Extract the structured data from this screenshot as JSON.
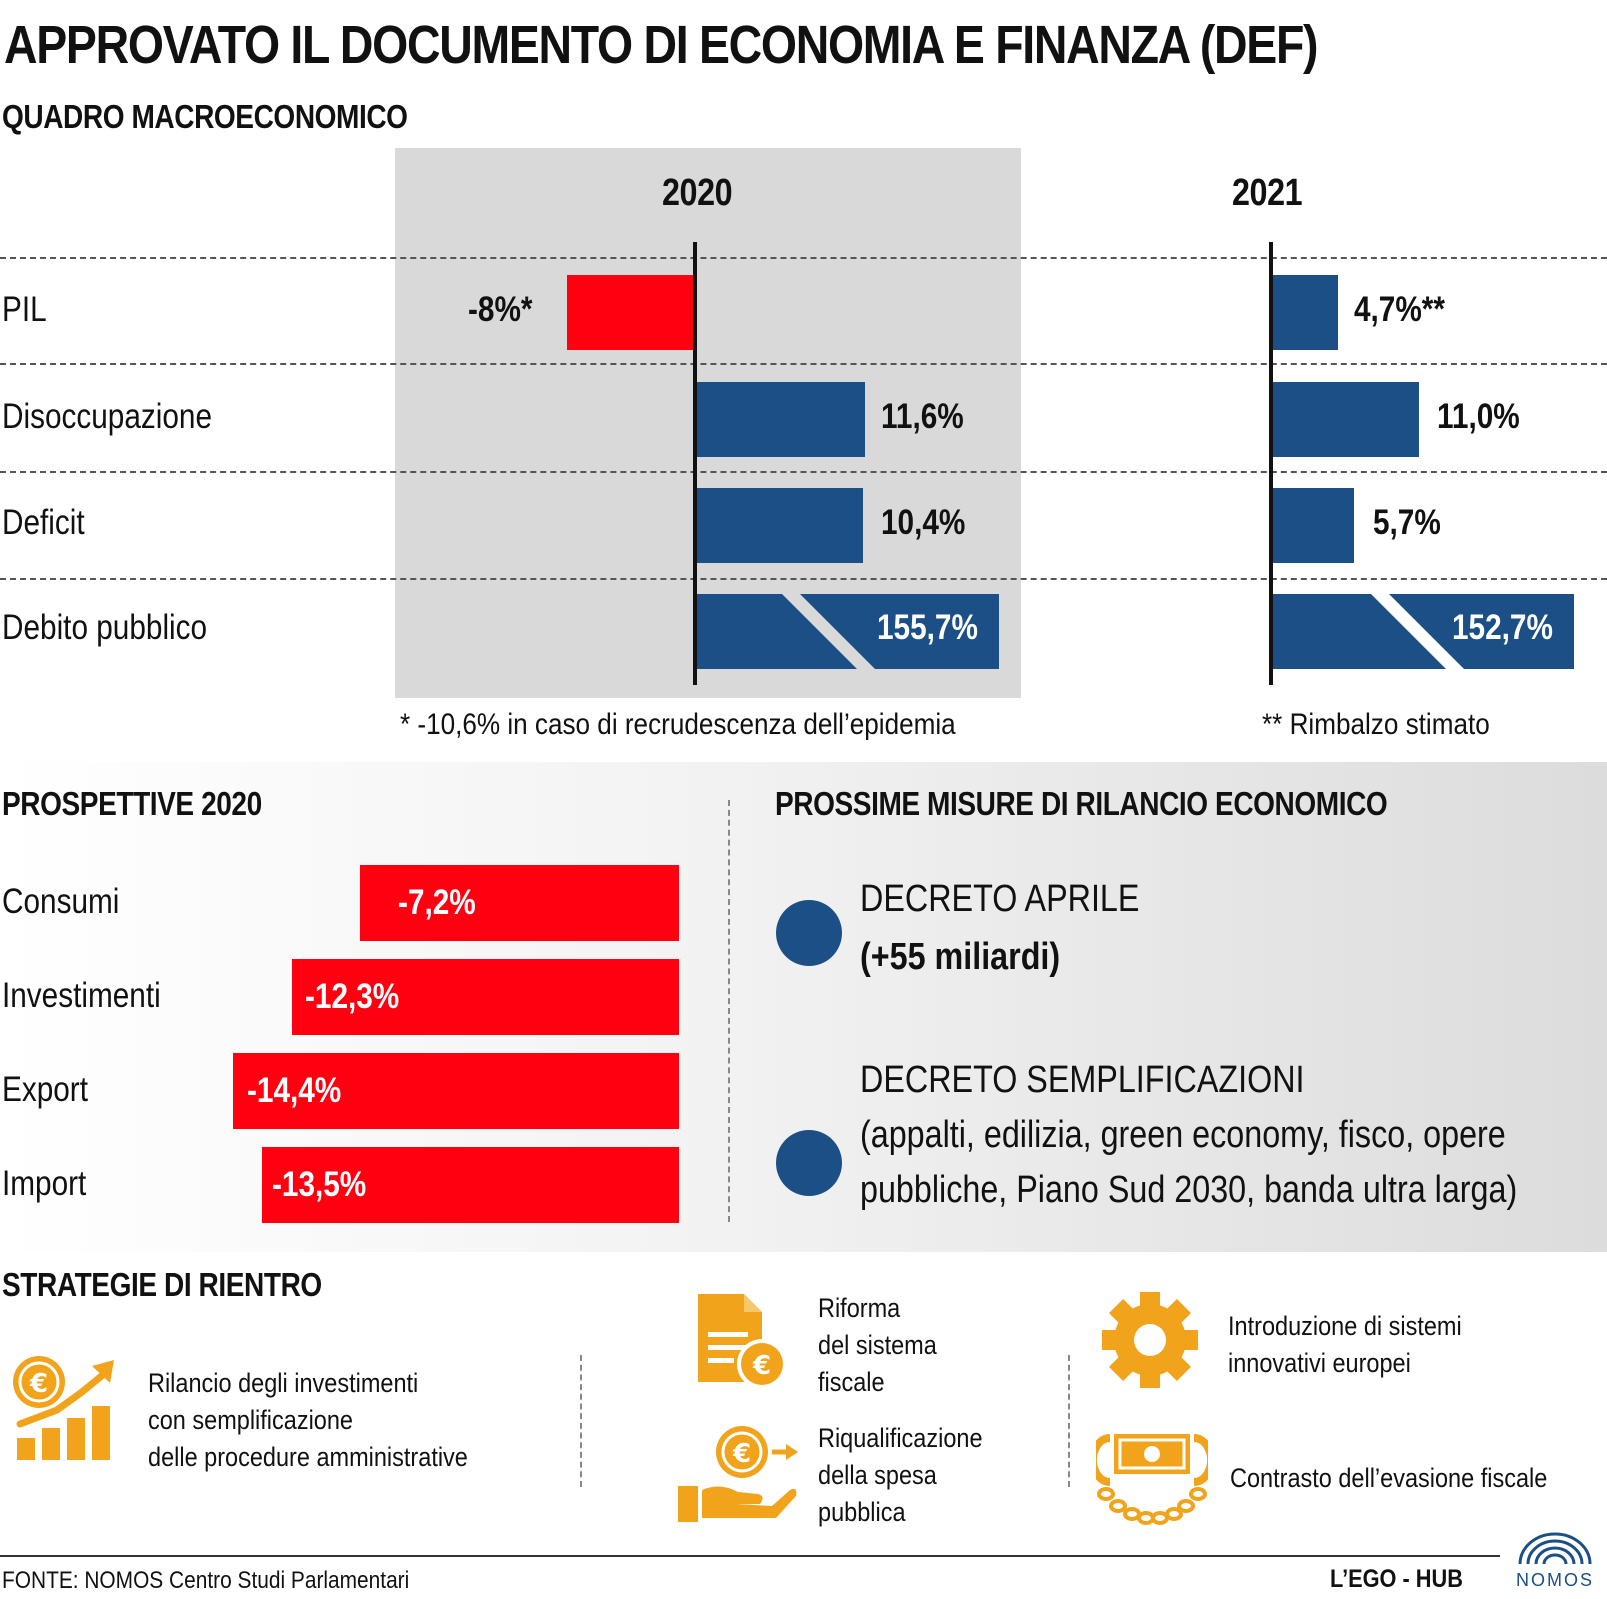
{
  "title": "APPROVATO IL DOCUMENTO DI ECONOMIA E FINANZA (DEF)",
  "macro": {
    "heading": "QUADRO MACROECONOMICO",
    "year1": "2020",
    "year2": "2021",
    "rows": [
      {
        "label": "PIL",
        "v2020": "-8%*",
        "v2021": "4,7%**"
      },
      {
        "label": "Disoccupazione",
        "v2020": "11,6%",
        "v2021": "11,0%"
      },
      {
        "label": "Deficit",
        "v2020": "10,4%",
        "v2021": "5,7%"
      },
      {
        "label": "Debito pubblico",
        "v2020": "155,7%",
        "v2021": "152,7%"
      }
    ],
    "note2020": "* -10,6% in caso di recrudescenza dell’epidemia",
    "note2021": "** Rimbalzo stimato"
  },
  "prospettive": {
    "heading": "PROSPETTIVE 2020",
    "items": [
      {
        "label": "Consumi",
        "value": "-7,2%"
      },
      {
        "label": "Investimenti",
        "value": "-12,3%"
      },
      {
        "label": "Export",
        "value": "-14,4%"
      },
      {
        "label": "Import",
        "value": "-13,5%"
      }
    ]
  },
  "misure": {
    "heading": "PROSSIME MISURE DI RILANCIO ECONOMICO",
    "m1_title": "DECRETO APRILE",
    "m1_detail": "(+55 miliardi)",
    "m2_title": "DECRETO SEMPLIFICAZIONI",
    "m2_line1": "(appalti, edilizia, green economy, fisco, opere",
    "m2_line2": "pubbliche, Piano Sud 2030, banda ultra larga)"
  },
  "strategie": {
    "heading": "STRATEGIE DI RIENTRO",
    "s1": [
      "Rilancio degli investimenti",
      "con semplificazione",
      "delle procedure amministrative"
    ],
    "s2": [
      "Riforma",
      "del sistema",
      "fiscale"
    ],
    "s3": [
      "Riqualificazione",
      "della spesa",
      "pubblica"
    ],
    "s4": [
      "Introduzione di sistemi",
      "innovativi europei"
    ],
    "s5": [
      "Contrasto dell’evasione fiscale"
    ]
  },
  "footer": {
    "source": "FONTE: NOMOS Centro Studi Parlamentari",
    "brand": "L’EGO - HUB",
    "logo": "NOMOS"
  },
  "colors": {
    "negative": "#ff0010",
    "positive": "#1b4f86",
    "icons": "#f0a31b",
    "panel": "#d9d9d9"
  },
  "chart_data": [
    {
      "type": "bar",
      "title": "QUADRO MACROECONOMICO",
      "categories": [
        "PIL",
        "Disoccupazione",
        "Deficit",
        "Debito pubblico"
      ],
      "series": [
        {
          "name": "2020",
          "values": [
            -8,
            11.6,
            10.4,
            155.7
          ]
        },
        {
          "name": "2021",
          "values": [
            4.7,
            11.0,
            5.7,
            152.7
          ]
        }
      ],
      "unit": "%"
    },
    {
      "type": "bar",
      "title": "PROSPETTIVE 2020",
      "categories": [
        "Consumi",
        "Investimenti",
        "Export",
        "Import"
      ],
      "values": [
        -7.2,
        -12.3,
        -14.4,
        -13.5
      ],
      "unit": "%"
    }
  ]
}
